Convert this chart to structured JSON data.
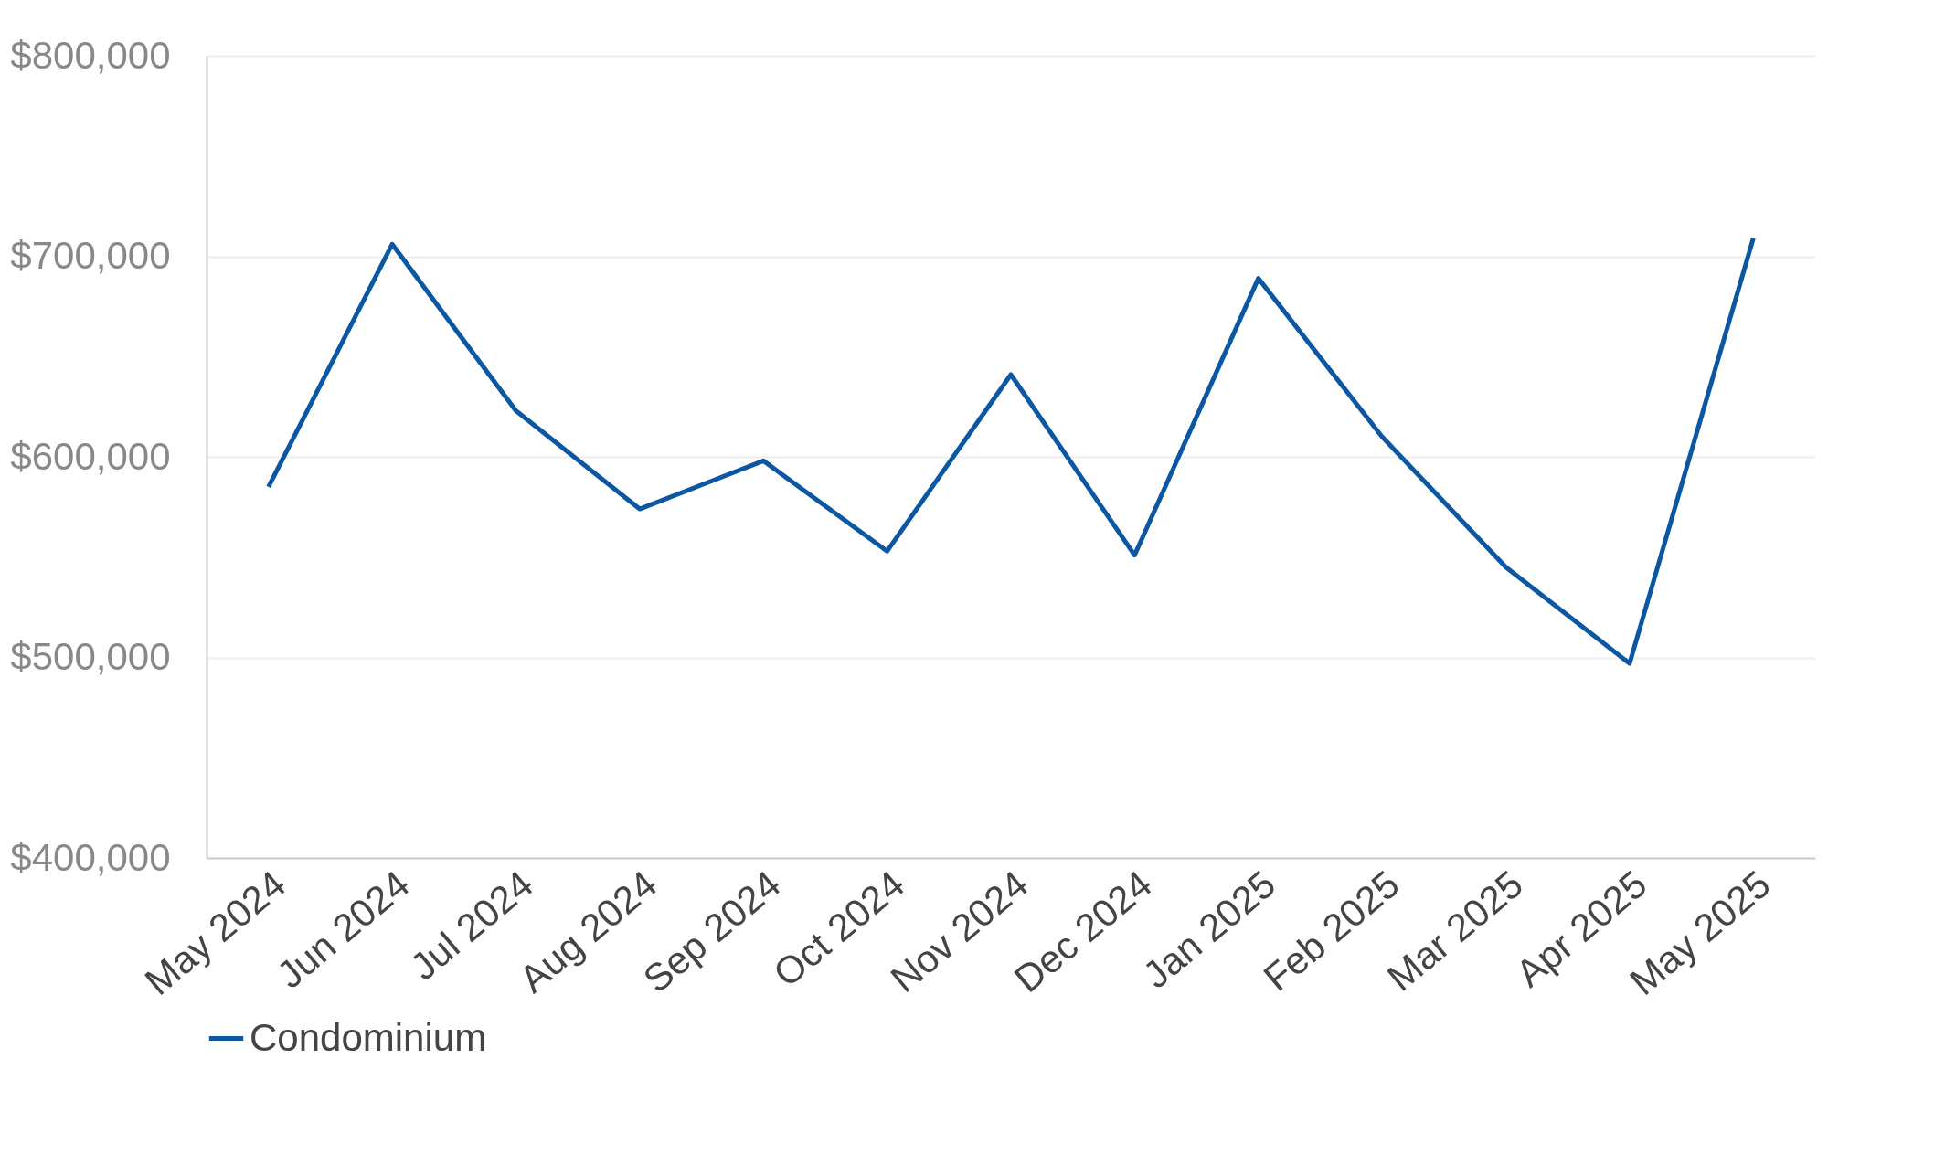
{
  "chart_data": {
    "type": "line",
    "categories": [
      "May 2024",
      "Jun 2024",
      "Jul 2024",
      "Aug 2024",
      "Sep 2024",
      "Oct 2024",
      "Nov 2024",
      "Dec 2024",
      "Jan 2025",
      "Feb 2025",
      "Mar 2025",
      "Apr 2025",
      "May 2025"
    ],
    "series": [
      {
        "name": "Condominium",
        "color": "#0b57a4",
        "values": [
          585000,
          706000,
          623000,
          574000,
          598000,
          553000,
          641000,
          551000,
          689000,
          610000,
          545000,
          497000,
          709000
        ]
      }
    ],
    "ylim": [
      400000,
      800000
    ],
    "yticks": [
      {
        "value": 400000,
        "label": "$400,000"
      },
      {
        "value": 500000,
        "label": "$500,000"
      },
      {
        "value": 600000,
        "label": "$600,000"
      },
      {
        "value": 700000,
        "label": "$700,000"
      },
      {
        "value": 800000,
        "label": "$800,000"
      }
    ],
    "grid": "y",
    "legend": "bottom",
    "marker": "none",
    "line_style": "solid"
  }
}
